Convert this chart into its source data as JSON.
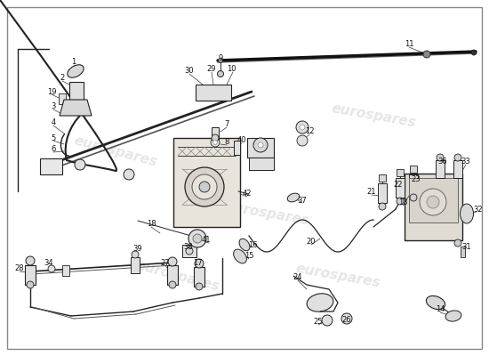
{
  "bg_color": "#ffffff",
  "line_color": "#222222",
  "label_color": "#111111",
  "part_color": "#dddddd",
  "watermark_color": "#cccccc",
  "watermark_text": "eurospares",
  "border_color": "#888888"
}
